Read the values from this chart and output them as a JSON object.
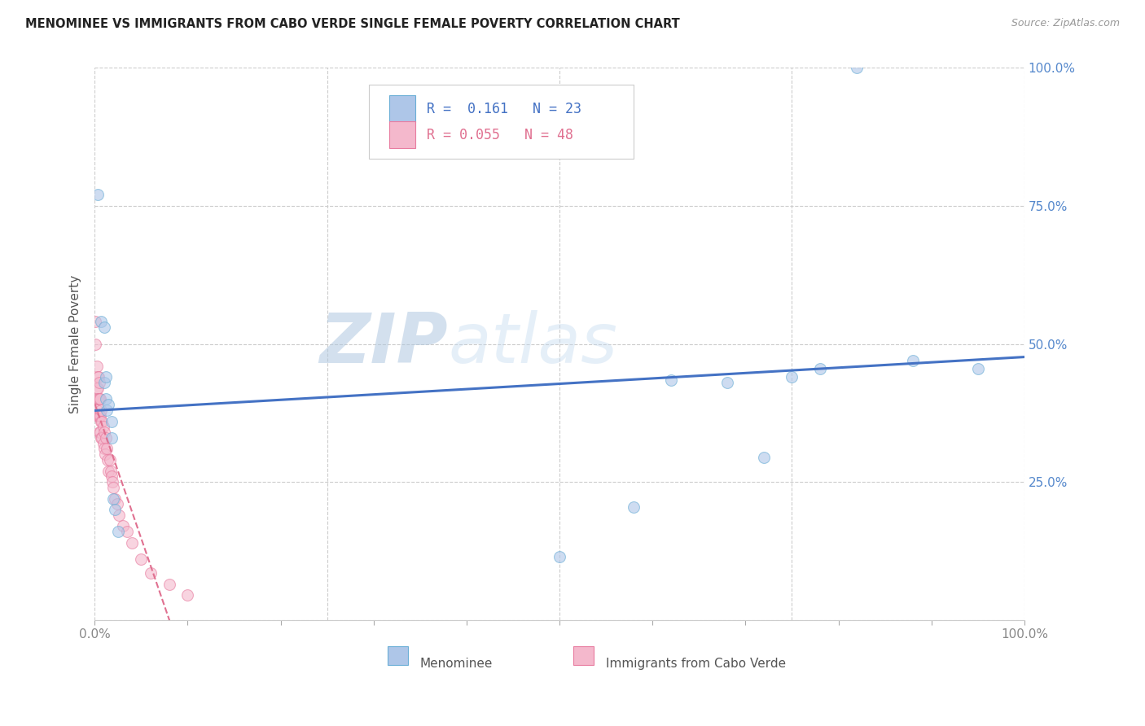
{
  "title": "MENOMINEE VS IMMIGRANTS FROM CABO VERDE SINGLE FEMALE POVERTY CORRELATION CHART",
  "source": "Source: ZipAtlas.com",
  "ylabel": "Single Female Poverty",
  "legend_label1": "Menominee",
  "legend_label2": "Immigrants from Cabo Verde",
  "R1": 0.161,
  "N1": 23,
  "R2": 0.055,
  "N2": 48,
  "color1": "#aec6e8",
  "color2": "#f4b8cc",
  "edge_color1": "#6aaed6",
  "edge_color2": "#e87ca0",
  "line_color1": "#4472c4",
  "line_color2": "#e07090",
  "background": "#ffffff",
  "menominee_x": [
    0.003,
    0.007,
    0.01,
    0.01,
    0.012,
    0.012,
    0.013,
    0.015,
    0.018,
    0.018,
    0.02,
    0.022,
    0.025,
    0.5,
    0.58,
    0.62,
    0.68,
    0.72,
    0.75,
    0.78,
    0.82,
    0.88,
    0.95
  ],
  "menominee_y": [
    0.77,
    0.54,
    0.53,
    0.43,
    0.44,
    0.4,
    0.38,
    0.39,
    0.36,
    0.33,
    0.22,
    0.2,
    0.16,
    0.115,
    0.205,
    0.435,
    0.43,
    0.295,
    0.44,
    0.455,
    1.0,
    0.47,
    0.455
  ],
  "cabo_verde_x": [
    0.001,
    0.001,
    0.002,
    0.002,
    0.002,
    0.003,
    0.003,
    0.003,
    0.003,
    0.004,
    0.004,
    0.004,
    0.005,
    0.005,
    0.005,
    0.005,
    0.006,
    0.006,
    0.006,
    0.007,
    0.007,
    0.007,
    0.008,
    0.008,
    0.009,
    0.009,
    0.01,
    0.01,
    0.011,
    0.012,
    0.013,
    0.014,
    0.015,
    0.016,
    0.017,
    0.018,
    0.019,
    0.02,
    0.022,
    0.024,
    0.026,
    0.03,
    0.035,
    0.04,
    0.05,
    0.06,
    0.08,
    0.1
  ],
  "cabo_verde_y": [
    0.54,
    0.5,
    0.46,
    0.42,
    0.38,
    0.44,
    0.42,
    0.4,
    0.37,
    0.44,
    0.4,
    0.37,
    0.43,
    0.4,
    0.37,
    0.34,
    0.4,
    0.37,
    0.34,
    0.38,
    0.36,
    0.33,
    0.36,
    0.33,
    0.35,
    0.32,
    0.34,
    0.31,
    0.3,
    0.33,
    0.31,
    0.29,
    0.27,
    0.29,
    0.27,
    0.26,
    0.25,
    0.24,
    0.22,
    0.21,
    0.19,
    0.17,
    0.16,
    0.14,
    0.11,
    0.085,
    0.065,
    0.045
  ],
  "xlim": [
    0.0,
    1.0
  ],
  "ylim": [
    0.0,
    1.0
  ],
  "xticks": [
    0.0,
    0.1,
    0.2,
    0.3,
    0.4,
    0.5,
    0.6,
    0.7,
    0.8,
    0.9,
    1.0
  ],
  "yticks": [
    0.0,
    0.25,
    0.5,
    0.75,
    1.0
  ],
  "marker_size": 100,
  "marker_alpha": 0.6
}
